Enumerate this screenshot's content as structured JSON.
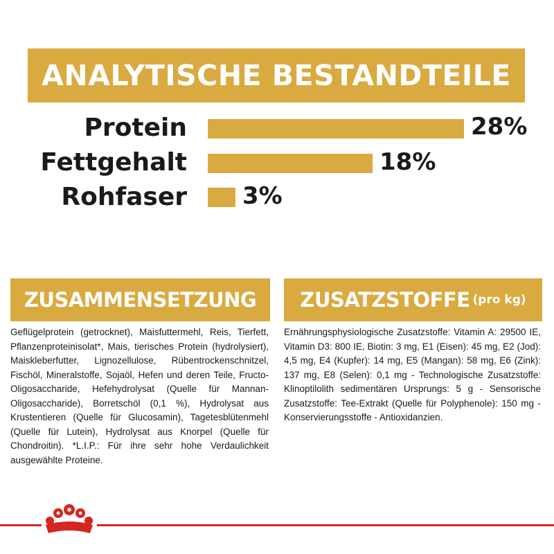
{
  "banner": {
    "title": "ANALYTISCHE BESTANDTEILE"
  },
  "analysis": [
    {
      "label": "Protein",
      "value_text": "28%",
      "value": 28
    },
    {
      "label": "Fettgehalt",
      "value_text": "18%",
      "value": 18
    },
    {
      "label": "Rohfaser",
      "value_text": "3%",
      "value": 3
    }
  ],
  "composition": {
    "title": "ZUSAMMENSETZUNG",
    "text": "Geflügelprotein (getrocknet), Maisfuttermehl, Reis, Tierfett, Pflanzenproteinisolat*, Mais, tierisches Protein (hydrolysiert), Maiskleberfutter, Lignozellulose, Rübentrockenschnitzel, Fischöl, Mineralstoffe, Sojaöl, Hefen und deren Teile, Fructo-Oligosaccharide, Hefehydrolysat (Quelle für Mannan-Oligosaccharide), Borretschöl (0,1 %), Hydrolysat aus Krustentieren (Quelle für Glucosamin), Tagetesblütenmehl (Quelle für Lutein), Hydrolysat aus Knorpel (Quelle für Chondroitin). *L.I.P.: Für ihre sehr hohe Verdaulichkeit ausgewählte Proteine."
  },
  "additives": {
    "title": "ZUSATZSTOFFE",
    "title_suffix": "(pro kg)",
    "text": "Ernährungsphysiologische Zusatzstoffe: Vitamin A: 29500 IE, Vitamin D3: 800 IE, Biotin: 3 mg, E1 (Eisen): 45 mg, E2 (Jod): 4,5 mg, E4 (Kupfer): 14 mg, E5 (Mangan): 58 mg, E6 (Zink): 137 mg, E8 (Selen): 0,1 mg - Technologische Zusatzstoffe: Klinoptilolith sedimentären Ursprungs: 5 g - Sensorische Zusatzstoffe: Tee-Extrakt (Quelle für Polyphenole): 150 mg - Konservierungsstoffe - Antioxidanzien."
  },
  "colors": {
    "gold": "#d9aa3f",
    "red": "#d5261f",
    "text": "#1a1a1a"
  },
  "logo": {
    "icon": "royal-canin-crown-icon"
  }
}
